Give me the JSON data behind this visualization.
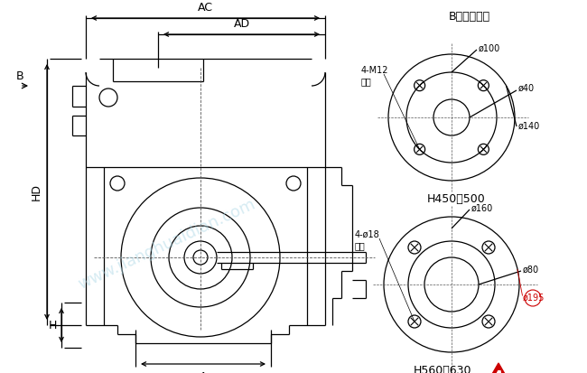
{
  "bg_color": "#ffffff",
  "line_color": "#000000",
  "watermark_color": "#add8e6",
  "watermark_text": "www.jianghuaidian.com",
  "red_color": "#cc0000",
  "title_top": "B向法兰尺寸",
  "label_AC": "AC",
  "label_AD": "AD",
  "label_B": "B",
  "label_HD": "HD",
  "label_H": "H",
  "label_A": "A",
  "label_4M12": "4-M12",
  "label_junbu1": "均布",
  "label_phi100": "ø100",
  "label_phi40": "ø40",
  "label_phi140": "ø140",
  "label_H450": "H450～500",
  "label_4phi18": "4-ø18",
  "label_junbu2": "均布",
  "label_phi160": "ø160",
  "label_phi80": "ø80",
  "label_phi195": "ø195",
  "label_H560": "H560～630",
  "figsize": [
    6.5,
    4.13
  ],
  "dpi": 100
}
